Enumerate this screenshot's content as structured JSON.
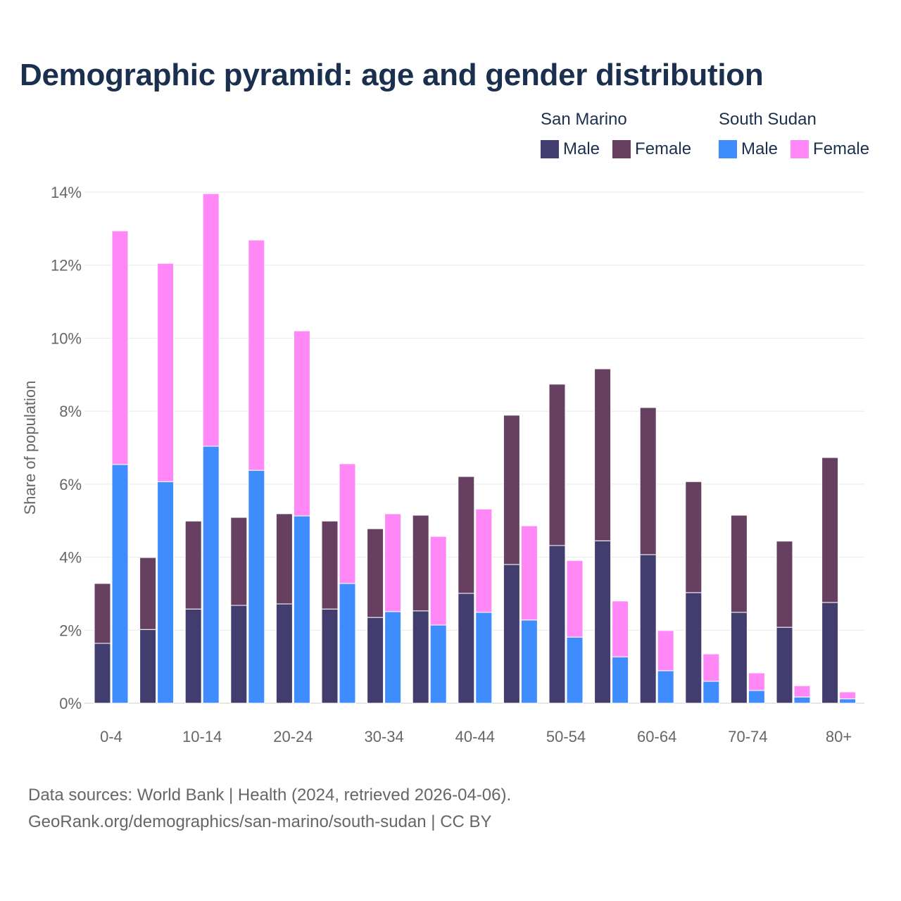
{
  "chart_data": {
    "type": "bar",
    "title": "Demographic pyramid: age and gender distribution",
    "xlabel": "",
    "ylabel": "Share of population",
    "ylim": [
      0,
      14
    ],
    "yticks": [
      "0%",
      "2%",
      "4%",
      "6%",
      "8%",
      "10%",
      "12%",
      "14%"
    ],
    "ytick_values": [
      0,
      2,
      4,
      6,
      8,
      10,
      12,
      14
    ],
    "grid": true,
    "legend_placement": "top-right",
    "categories": [
      "0-4",
      "5-9",
      "10-14",
      "15-19",
      "20-24",
      "25-29",
      "30-34",
      "35-39",
      "40-44",
      "45-49",
      "50-54",
      "55-59",
      "60-64",
      "65-69",
      "70-74",
      "75-79",
      "80+"
    ],
    "xtick_labels": [
      "0-4",
      "10-14",
      "20-24",
      "30-34",
      "40-44",
      "50-54",
      "60-64",
      "70-74",
      "80+"
    ],
    "countries": [
      {
        "name": "San Marino",
        "series": [
          {
            "name": "Male",
            "color": "#413d6f",
            "values": [
              1.64,
              2.02,
              2.58,
              2.68,
              2.72,
              2.58,
              2.35,
              2.53,
              3.01,
              3.8,
              4.32,
              4.45,
              4.07,
              3.03,
              2.49,
              2.08,
              2.76
            ]
          },
          {
            "name": "Female",
            "color": "#673f60",
            "values": [
              1.64,
              1.97,
              2.41,
              2.41,
              2.47,
              2.41,
              2.43,
              2.62,
              3.2,
              4.09,
              4.42,
              4.71,
              4.03,
              3.04,
              2.66,
              2.36,
              3.97
            ]
          }
        ]
      },
      {
        "name": "South Sudan",
        "series": [
          {
            "name": "Male",
            "color": "#3f8cff",
            "values": [
              6.54,
              6.07,
              7.04,
              6.38,
              5.13,
              3.28,
              2.51,
              2.14,
              2.49,
              2.28,
              1.81,
              1.27,
              0.89,
              0.6,
              0.35,
              0.17,
              0.12
            ]
          },
          {
            "name": "Female",
            "color": "#ff88f6",
            "values": [
              6.4,
              5.98,
              6.92,
              6.31,
              5.07,
              3.28,
              2.68,
              2.43,
              2.83,
              2.58,
              2.1,
              1.53,
              1.1,
              0.75,
              0.48,
              0.31,
              0.19
            ]
          }
        ]
      }
    ]
  },
  "footer": {
    "source": "Data sources: World Bank | Health (2024, retrieved 2026-04-06).",
    "url": "GeoRank.org/demographics/san-marino/south-sudan | CC BY"
  }
}
